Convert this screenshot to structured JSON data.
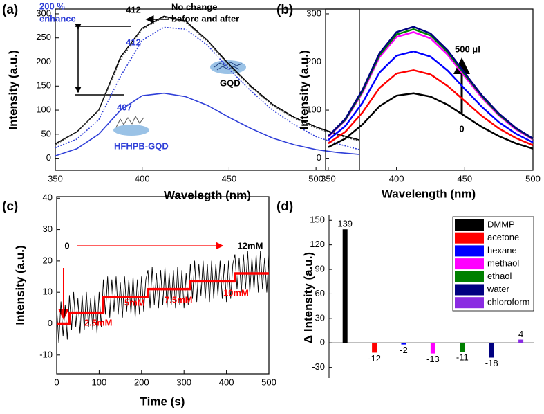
{
  "chart_data": [
    {
      "type": "line",
      "panel_label": "(a)",
      "x_label": "Wavelegth (nm)",
      "y_label": "Intensity (a.u.)",
      "x": [
        350,
        362.5,
        375,
        387.5,
        400,
        412.5,
        425,
        437.5,
        450,
        462.5,
        475,
        487.5,
        500,
        512.5,
        525
      ],
      "xlim": [
        350,
        525
      ],
      "ylim": [
        -25,
        310
      ],
      "xticks": [
        350,
        400,
        450,
        500
      ],
      "yticks": [
        0,
        50,
        100,
        150,
        200,
        250,
        300
      ],
      "series": [
        {
          "color": "#000000",
          "style": "solid",
          "values": [
            30,
            55,
            100,
            210,
            270,
            295,
            285,
            245,
            195,
            150,
            112,
            85,
            65,
            50,
            38
          ]
        },
        {
          "color": "#444444",
          "style": "dotted",
          "values": [
            28,
            55,
            100,
            205,
            268,
            293,
            283,
            243,
            193,
            148,
            110,
            83,
            63,
            48,
            36
          ]
        },
        {
          "color": "#2f3fd8",
          "style": "dotted",
          "values": [
            22,
            40,
            80,
            170,
            245,
            272,
            268,
            235,
            185,
            140,
            100,
            70,
            45,
            30,
            18
          ]
        },
        {
          "color": "#2f3fd8",
          "style": "solid",
          "values": [
            5,
            20,
            50,
            100,
            130,
            135,
            128,
            110,
            85,
            62,
            42,
            28,
            18,
            12,
            8
          ]
        }
      ],
      "annotations": [
        "412",
        "No change",
        "before and after",
        "200 %",
        "enhance",
        "412",
        "407",
        "GQD",
        "HFHPB-GQD"
      ]
    },
    {
      "type": "line",
      "panel_label": "(b)",
      "x_label": "Wavelength (nm)",
      "y_label": "Intensity (a.u.)",
      "x": [
        350,
        362.5,
        375,
        387.5,
        400,
        412.5,
        425,
        437.5,
        450,
        462.5,
        475,
        487.5,
        500
      ],
      "xlim": [
        348,
        500
      ],
      "ylim": [
        -25,
        310
      ],
      "xticks": [
        350,
        400,
        450,
        500
      ],
      "yticks": [
        0,
        100,
        200,
        300
      ],
      "series": [
        {
          "color": "#000000",
          "values": [
            23,
            41,
            70,
            108,
            130,
            135,
            128,
            111,
            88,
            65,
            46,
            31,
            20
          ]
        },
        {
          "color": "#ff0000",
          "values": [
            31,
            55,
            95,
            146,
            176,
            183,
            174,
            150,
            119,
            88,
            62,
            42,
            27
          ]
        },
        {
          "color": "#0000ff",
          "values": [
            38,
            67,
            115,
            178,
            213,
            222,
            211,
            182,
            144,
            107,
            75,
            51,
            33
          ]
        },
        {
          "color": "#ff00ff",
          "values": [
            45,
            79,
            136,
            210,
            252,
            262,
            249,
            215,
            170,
            126,
            89,
            60,
            39
          ]
        },
        {
          "color": "#008000",
          "values": [
            46,
            80,
            139,
            214,
            257,
            268,
            255,
            220,
            174,
            129,
            91,
            62,
            40
          ]
        },
        {
          "color": "#000080",
          "values": [
            46,
            82,
            142,
            218,
            262,
            273,
            259,
            224,
            177,
            131,
            93,
            63,
            41
          ]
        }
      ],
      "annotations": [
        "500 μl",
        "0"
      ]
    },
    {
      "type": "line",
      "panel_label": "(c)",
      "x_label": "Time (s)",
      "y_label": "Intensity (a.u.)",
      "xlim": [
        0,
        500
      ],
      "ylim": [
        -16,
        40.5
      ],
      "xticks": [
        0,
        100,
        200,
        300,
        400,
        500
      ],
      "yticks": [
        -10,
        0,
        10,
        20,
        30,
        40
      ],
      "series": [
        {
          "color": "#000000",
          "style": "thin",
          "x": [
            0,
            5,
            10,
            15,
            20,
            25,
            30,
            35,
            40,
            45,
            50,
            55,
            60,
            65,
            70,
            75,
            80,
            85,
            90,
            95,
            100,
            105,
            110,
            115,
            120,
            125,
            130,
            135,
            140,
            145,
            150,
            155,
            160,
            165,
            170,
            175,
            180,
            185,
            190,
            195,
            200,
            205,
            210,
            215,
            220,
            225,
            230,
            235,
            240,
            245,
            250,
            255,
            260,
            265,
            270,
            275,
            280,
            285,
            290,
            295,
            300,
            305,
            310,
            315,
            320,
            325,
            330,
            335,
            340,
            345,
            350,
            355,
            360,
            365,
            370,
            375,
            380,
            385,
            390,
            395,
            400,
            405,
            410,
            415,
            420,
            425,
            430,
            435,
            440,
            445,
            450,
            455,
            460,
            465,
            470,
            475,
            480,
            485,
            490,
            495,
            500
          ],
          "values": [
            5,
            -6,
            7,
            -4,
            6,
            -5,
            9,
            -2,
            10,
            -1,
            8,
            -3,
            9,
            -2,
            10,
            -1,
            8,
            -2,
            9,
            -3,
            10,
            -1,
            14,
            3,
            15,
            2,
            14,
            4,
            15,
            3,
            13,
            2,
            15,
            4,
            14,
            3,
            15,
            2,
            14,
            3,
            15,
            4,
            14,
            17,
            5,
            18,
            6,
            16,
            5,
            17,
            6,
            18,
            5,
            16,
            6,
            17,
            5,
            18,
            6,
            17,
            5,
            16,
            6,
            19,
            8,
            20,
            7,
            19,
            9,
            20,
            8,
            19,
            7,
            20,
            8,
            19,
            9,
            20,
            8,
            19,
            7,
            20,
            8,
            19,
            22,
            11,
            21,
            10,
            22,
            11,
            23,
            10,
            21,
            11,
            22,
            10,
            23,
            11,
            21,
            10,
            22
          ]
        },
        {
          "color": "#ff0000",
          "style": "thick",
          "x": [
            0,
            30,
            30,
            110,
            110,
            215,
            215,
            315,
            315,
            420,
            420,
            500
          ],
          "values": [
            0,
            0,
            3.5,
            3.5,
            8.5,
            8.5,
            11,
            11,
            13.5,
            13.5,
            16,
            16
          ]
        }
      ],
      "annotations": [
        "0",
        "12mM",
        "2.5mM",
        "5mM",
        "7.5mM",
        "10mM"
      ]
    },
    {
      "type": "bar",
      "panel_label": "(d)",
      "y_label": "Δ Intensity (a.u.)",
      "categories": [
        "DMMP",
        "acetone",
        "hexane",
        "methaol",
        "ethaol",
        "water",
        "chloroform"
      ],
      "values": [
        139,
        -12,
        -2,
        -13,
        -11,
        -18,
        4
      ],
      "colors": [
        "#000000",
        "#ff0000",
        "#0000ff",
        "#ff00ff",
        "#008000",
        "#000080",
        "#8a2be2"
      ],
      "ylim": [
        -43,
        157
      ],
      "yticks": [
        -30,
        0,
        30,
        60,
        90,
        120,
        150
      ],
      "legend": "upper right"
    }
  ]
}
